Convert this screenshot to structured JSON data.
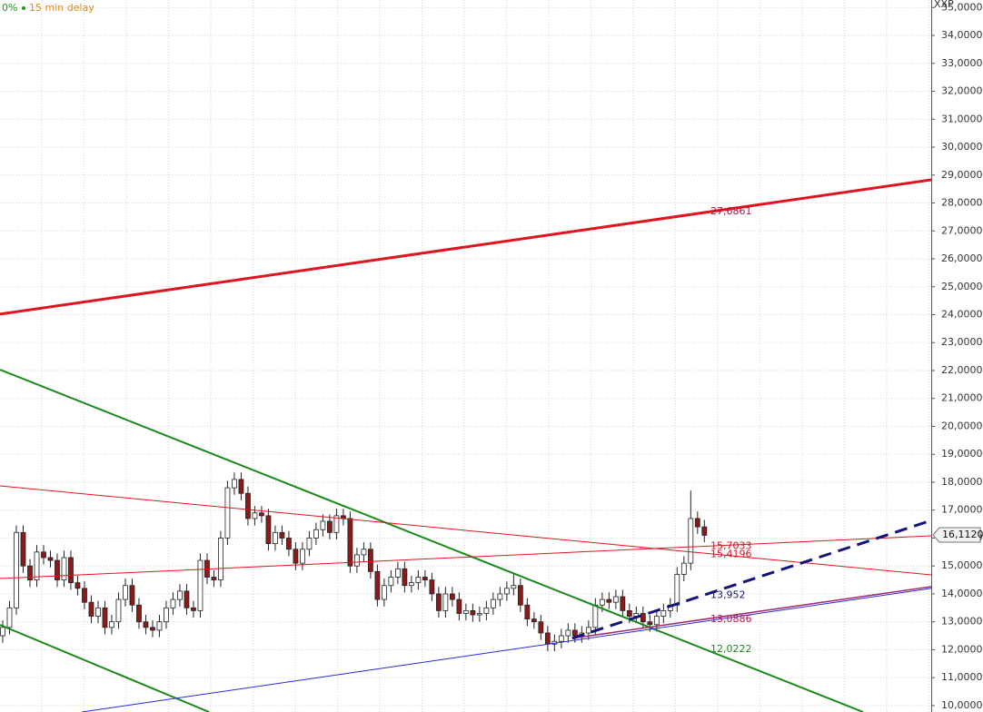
{
  "chart_data": {
    "type": "candlestick",
    "status": "0%",
    "delay_note": "15 min delay",
    "axis_label": "XXP",
    "ylim": [
      9.77,
      35.27
    ],
    "xlim": [
      -0.4,
      136.3
    ],
    "yticks": [
      {
        "value": 10,
        "label": "10,0000"
      },
      {
        "value": 11,
        "label": "11,0000"
      },
      {
        "value": 12,
        "label": "12,0000"
      },
      {
        "value": 13,
        "label": "13,0000"
      },
      {
        "value": 14,
        "label": "14,0000"
      },
      {
        "value": 15,
        "label": "15,0000"
      },
      {
        "value": 16,
        "label": "16,0000"
      },
      {
        "value": 17,
        "label": "17,0000"
      },
      {
        "value": 18,
        "label": "18,0000"
      },
      {
        "value": 19,
        "label": "19,0000"
      },
      {
        "value": 20,
        "label": "20,0000"
      },
      {
        "value": 21,
        "label": "21,0000"
      },
      {
        "value": 22,
        "label": "22,0000"
      },
      {
        "value": 23,
        "label": "23,0000"
      },
      {
        "value": 24,
        "label": "24,0000"
      },
      {
        "value": 25,
        "label": "25,0000"
      },
      {
        "value": 26,
        "label": "26,0000"
      },
      {
        "value": 27,
        "label": "27,0000"
      },
      {
        "value": 28,
        "label": "28,0000"
      },
      {
        "value": 29,
        "label": "29,0000"
      },
      {
        "value": 30,
        "label": "30,0000"
      },
      {
        "value": 31,
        "label": "31,0000"
      },
      {
        "value": 32,
        "label": "32,0000"
      },
      {
        "value": 33,
        "label": "33,0000"
      },
      {
        "value": 34,
        "label": "34,0000"
      },
      {
        "value": 35,
        "label": "35,0000"
      }
    ],
    "grid": true,
    "up_color": "#ffffff",
    "down_color": "#8b1a1a",
    "open": [
      12.5,
      12.8,
      13.5,
      16.2,
      15,
      14.5,
      15.5,
      15.3,
      15.2,
      14.5,
      15.3,
      14.4,
      14.2,
      13.7,
      13.2,
      13.5,
      12.8,
      13,
      13.8,
      14.3,
      13.6,
      13,
      12.8,
      12.7,
      13,
      13.5,
      13.8,
      14.1,
      13.5,
      13.4,
      15.2,
      14.6,
      14.5,
      16,
      17.8,
      18.1,
      17.6,
      16.7,
      16.9,
      16.8,
      15.8,
      16.2,
      16,
      15.6,
      15.1,
      15.6,
      16,
      16.3,
      16.6,
      16.2,
      16.8,
      16.7,
      15,
      15.4,
      15.6,
      14.8,
      13.8,
      14.3,
      14.6,
      14.9,
      14.3,
      14.4,
      14.6,
      14.5,
      14,
      13.4,
      14,
      13.8,
      13.3,
      13.4,
      13.25,
      13.3,
      13.5,
      13.8,
      14,
      14.2,
      14.3,
      13.6,
      13.1,
      13,
      12.6,
      12.2,
      12.3,
      12.5,
      12.7,
      12.5,
      12.6,
      12.8,
      13.6,
      13.8,
      13.7,
      13.9,
      13.4,
      13.2,
      13.3,
      13,
      12.9,
      13.2,
      13.4,
      13.6,
      14.7,
      15.1,
      16.7,
      16.4
    ],
    "high": [
      13.05,
      13.75,
      16.45,
      16.45,
      15.25,
      15.75,
      15.75,
      15.55,
      15.45,
      15.55,
      15.55,
      14.65,
      14.45,
      13.95,
      13.75,
      13.75,
      13.25,
      14.05,
      14.55,
      14.55,
      13.85,
      13.25,
      13.05,
      13.25,
      13.75,
      14.05,
      14.35,
      14.35,
      13.75,
      15.45,
      15.45,
      14.85,
      16.25,
      18.05,
      18.35,
      18.35,
      17.85,
      17.15,
      17.15,
      17.05,
      16.45,
      16.45,
      16.25,
      15.85,
      15.85,
      16.25,
      16.55,
      16.85,
      16.85,
      17.05,
      17.05,
      16.95,
      15.65,
      15.85,
      15.85,
      15.05,
      14.55,
      14.85,
      15.15,
      15.15,
      14.65,
      14.85,
      14.85,
      14.75,
      14.25,
      14.25,
      14.25,
      14.05,
      13.65,
      13.65,
      13.55,
      13.75,
      14.05,
      14.25,
      14.45,
      14.75,
      14.55,
      13.85,
      13.35,
      13.25,
      12.85,
      12.55,
      12.75,
      12.95,
      12.95,
      12.85,
      13.05,
      13.85,
      14.05,
      14.05,
      14.15,
      14.15,
      13.65,
      13.55,
      13.55,
      13.25,
      13.45,
      13.65,
      13.85,
      14.95,
      15.35,
      17.7,
      16.95,
      16.65
    ],
    "low": [
      12.25,
      12.55,
      13.25,
      14.75,
      14.25,
      14.25,
      15.05,
      14.95,
      14.25,
      14.25,
      14.15,
      13.95,
      13.45,
      12.95,
      12.95,
      12.55,
      12.55,
      12.75,
      13.55,
      13.35,
      12.75,
      12.55,
      12.45,
      12.45,
      12.75,
      13.25,
      13.55,
      13.25,
      13.15,
      13.15,
      14.35,
      14.25,
      14.25,
      15.75,
      17.55,
      17.35,
      16.45,
      16.45,
      16.55,
      15.55,
      15.55,
      15.75,
      15.35,
      14.85,
      14.85,
      15.35,
      15.75,
      16.05,
      15.95,
      15.95,
      16.45,
      14.75,
      14.75,
      15.15,
      14.55,
      13.55,
      13.55,
      14.05,
      14.35,
      14.05,
      14.05,
      14.15,
      14.25,
      13.75,
      13.15,
      13.15,
      13.55,
      13.05,
      13.05,
      13,
      13,
      13.05,
      13.25,
      13.55,
      13.75,
      13.95,
      13.35,
      12.85,
      12.75,
      12.35,
      11.95,
      11.95,
      12.05,
      12.25,
      12.25,
      12.25,
      12.35,
      12.55,
      13.35,
      13.45,
      13.45,
      13.15,
      12.95,
      12.95,
      12.75,
      12.65,
      12.65,
      12.95,
      13.15,
      13.35,
      14.45,
      14.85,
      16.15,
      15.85
    ],
    "close": [
      12.8,
      13.5,
      16.2,
      15,
      14.5,
      15.5,
      15.3,
      15.2,
      14.5,
      15.3,
      14.4,
      14.2,
      13.7,
      13.2,
      13.5,
      12.8,
      13,
      13.8,
      14.3,
      13.6,
      13,
      12.8,
      12.7,
      13,
      13.5,
      13.8,
      14.1,
      13.5,
      13.4,
      15.2,
      14.6,
      14.5,
      16,
      17.8,
      18.1,
      17.6,
      16.7,
      16.9,
      16.8,
      15.8,
      16.2,
      16,
      15.6,
      15.1,
      15.6,
      16,
      16.3,
      16.6,
      16.2,
      16.8,
      16.7,
      15,
      15.4,
      15.6,
      14.8,
      13.8,
      14.3,
      14.6,
      14.9,
      14.3,
      14.4,
      14.6,
      14.5,
      14,
      13.4,
      14,
      13.8,
      13.3,
      13.4,
      13.25,
      13.3,
      13.5,
      13.8,
      14,
      14.2,
      14.3,
      13.6,
      13.1,
      13,
      12.6,
      12.2,
      12.3,
      12.5,
      12.7,
      12.5,
      12.6,
      12.8,
      13.6,
      13.8,
      13.7,
      13.9,
      13.4,
      13.2,
      13.3,
      13,
      12.9,
      13.2,
      13.4,
      13.6,
      14.7,
      15.1,
      16.7,
      16.4,
      16.1
    ],
    "lines": [
      {
        "color": "#e0141e",
        "width": 3,
        "x": [
          -0.4,
          136.3
        ],
        "y": [
          24.02,
          28.83
        ]
      },
      {
        "color": "#1a8a1a",
        "width": 2,
        "x": [
          -0.4,
          126.3
        ],
        "y": [
          22.03,
          9.77
        ]
      },
      {
        "color": "#1a8a1a",
        "width": 2,
        "x": [
          -0.4,
          30.3
        ],
        "y": [
          12.89,
          9.77
        ]
      },
      {
        "color": "#e0141e",
        "width": 1,
        "x": [
          -0.4,
          136.3
        ],
        "y": [
          17.87,
          14.68
        ]
      },
      {
        "color": "#e0141e",
        "width": 1,
        "x": [
          -0.4,
          136.3
        ],
        "y": [
          14.55,
          16.08
        ]
      },
      {
        "color": "#2a2ad8",
        "width": 1,
        "x": [
          11.6,
          136.3
        ],
        "y": [
          9.77,
          14.2
        ]
      },
      {
        "color": "#a0286e",
        "width": 1.5,
        "x": [
          83.6,
          136.3
        ],
        "y": [
          12.41,
          14.26
        ]
      },
      {
        "color": "#14147a",
        "width": 3,
        "dashed": true,
        "x": [
          83.6,
          136.3
        ],
        "y": [
          12.41,
          16.63
        ]
      }
    ],
    "annotations": [
      {
        "value": 27.6861,
        "label": "27,6861",
        "color": "#b0103a"
      },
      {
        "value": 15.4196,
        "label": "15,4196",
        "color": "#d0141e"
      },
      {
        "value": 15.7033,
        "label": "15,7033",
        "color": "#d0141e"
      },
      {
        "value": 13.952,
        "label": "13,952",
        "color": "#14147a"
      },
      {
        "value": 13.0886,
        "label": "13,0886",
        "color": "#c0144e"
      },
      {
        "value": 12.0222,
        "label": "12,0222",
        "color": "#1a8a1a"
      }
    ],
    "last_price": {
      "value": 16.112,
      "label": "16,1120"
    }
  }
}
